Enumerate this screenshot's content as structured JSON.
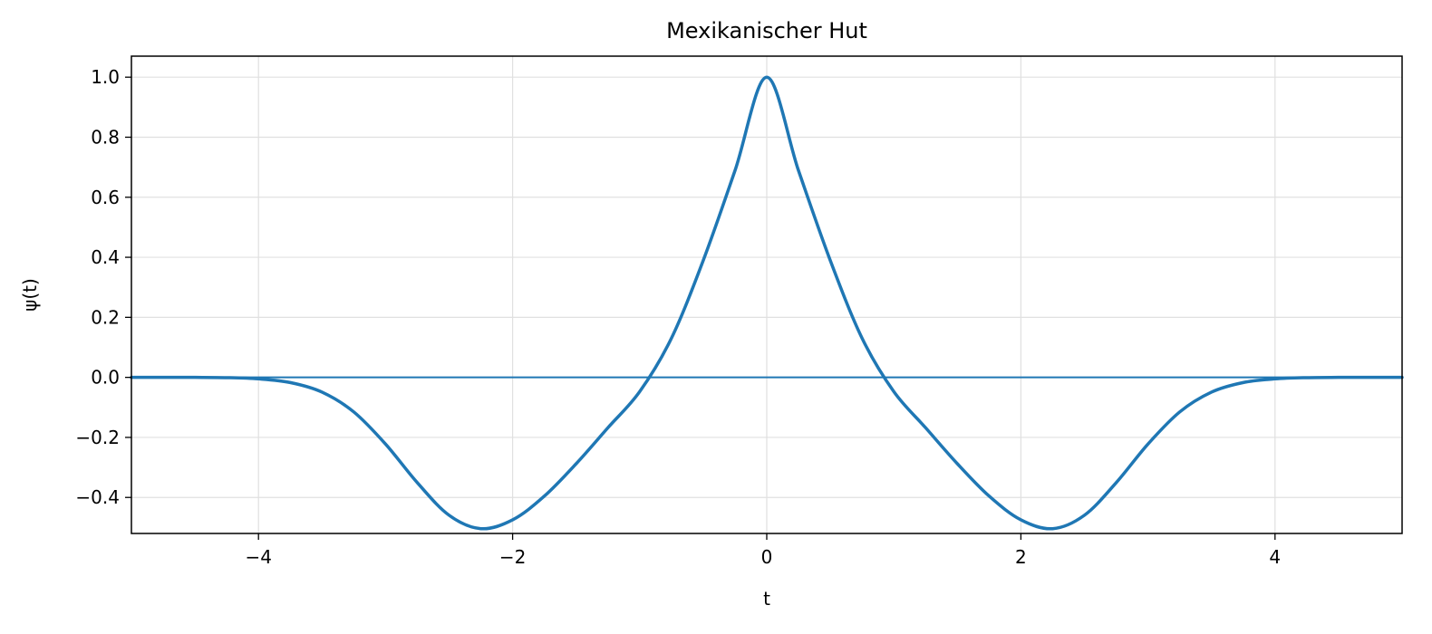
{
  "chart_data": {
    "type": "line",
    "title": "Mexikanischer Hut",
    "xlabel": "t",
    "ylabel": "ψ(t)",
    "xlim": [
      -5,
      5
    ],
    "ylim": [
      -0.52,
      1.07
    ],
    "xticks": [
      -4,
      -2,
      0,
      2,
      4
    ],
    "xtick_labels": [
      "−4",
      "−2",
      "0",
      "2",
      "4"
    ],
    "yticks": [
      -0.4,
      -0.2,
      0.0,
      0.2,
      0.4,
      0.6,
      0.8,
      1.0
    ],
    "ytick_labels": [
      "−0.4",
      "−0.2",
      "0.0",
      "0.2",
      "0.4",
      "0.6",
      "0.8",
      "1.0"
    ],
    "grid": true,
    "zero_line": true,
    "colors": {
      "line": "#1f77b4",
      "grid": "#e0e0e0"
    },
    "series": [
      {
        "x": [
          -5,
          -4.75,
          -4.5,
          -4.25,
          -4,
          -3.75,
          -3.5,
          -3.25,
          -3,
          -2.75,
          -2.5,
          -2.25,
          -2,
          -1.75,
          -1.5,
          -1.25,
          -1,
          -0.75,
          -0.5,
          -0.25,
          0,
          0.25,
          0.5,
          0.75,
          1,
          1.25,
          1.5,
          1.75,
          2,
          2.25,
          2.5,
          2.75,
          3,
          3.25,
          3.5,
          3.75,
          4,
          4.25,
          4.5,
          4.75,
          5
        ],
        "y": [
          0.0,
          -0.0,
          -0.0001,
          -0.0009,
          -0.005,
          -0.0172,
          -0.0491,
          -0.1151,
          -0.2222,
          -0.3509,
          -0.4593,
          -0.504,
          -0.4746,
          -0.3955,
          -0.2877,
          -0.1678,
          -0.0476,
          0.1306,
          0.3894,
          0.6887,
          1.0,
          0.6887,
          0.3894,
          0.1306,
          -0.0476,
          -0.1678,
          -0.2877,
          -0.3955,
          -0.4746,
          -0.504,
          -0.4593,
          -0.3509,
          -0.2222,
          -0.1151,
          -0.0491,
          -0.0172,
          -0.005,
          -0.0009,
          -0.0001,
          -0.0,
          0.0
        ]
      }
    ]
  }
}
